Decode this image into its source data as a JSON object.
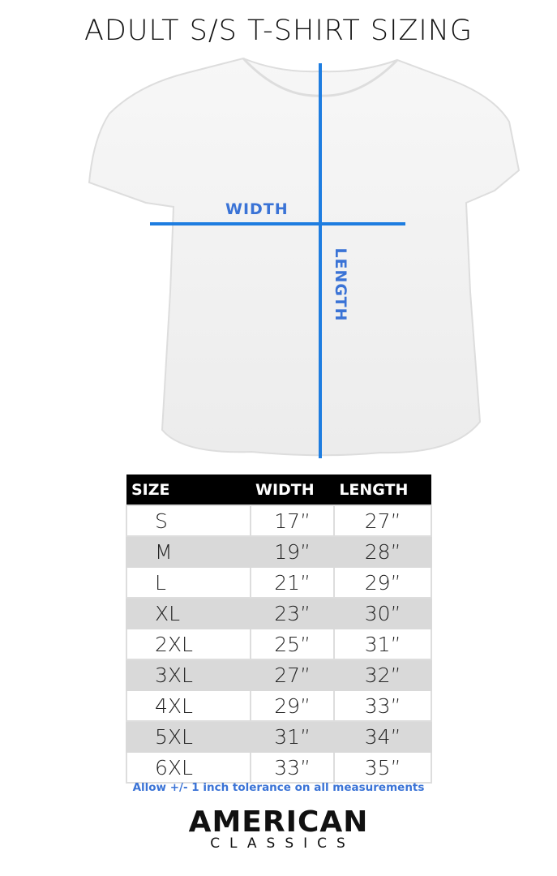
{
  "title": "ADULT S/S T-SHIRT SIZING",
  "diagram": {
    "width_label": "WIDTH",
    "length_label": "LENGTH",
    "line_color": "#1e7de0"
  },
  "table": {
    "headers": [
      "SIZE",
      "WIDTH",
      "LENGTH"
    ],
    "rows": [
      [
        "S",
        "17”",
        "27”"
      ],
      [
        "M",
        "19”",
        "28”"
      ],
      [
        "L",
        "21”",
        "29”"
      ],
      [
        "XL",
        "23”",
        "30”"
      ],
      [
        "2XL",
        "25”",
        "31”"
      ],
      [
        "3XL",
        "27”",
        "32”"
      ],
      [
        "4XL",
        "29”",
        "33”"
      ],
      [
        "5XL",
        "31”",
        "34”"
      ],
      [
        "6XL",
        "33”",
        "35”"
      ]
    ]
  },
  "note": "Allow +/- 1 inch tolerance on all measurements",
  "logo": {
    "line1": "AMERICAN",
    "line2": "CLASSICS"
  }
}
